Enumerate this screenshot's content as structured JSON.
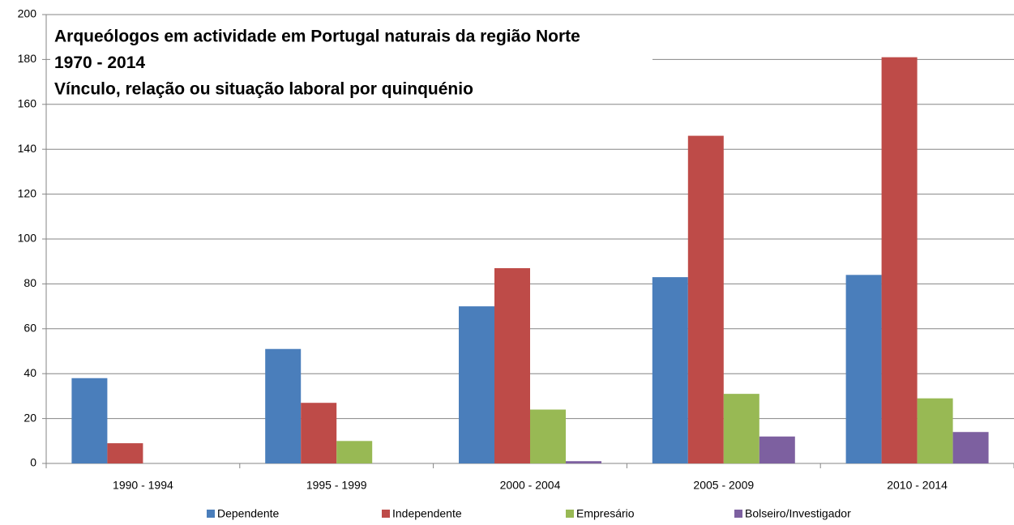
{
  "chart_data": {
    "type": "bar",
    "title": [
      "Arqueólogos em actividade em Portugal naturais da região Norte",
      "1970 - 2014",
      "Vínculo, relação ou situação laboral por quinquénio"
    ],
    "categories": [
      "1990 - 1994",
      "1995 - 1999",
      "2000 - 2004",
      "2005 - 2009",
      "2010 - 2014"
    ],
    "series": [
      {
        "name": "Dependente",
        "color": "#4a7ebb",
        "values": [
          38,
          51,
          70,
          83,
          84
        ]
      },
      {
        "name": "Independente",
        "color": "#be4b48",
        "values": [
          9,
          27,
          87,
          146,
          181
        ]
      },
      {
        "name": "Empresário",
        "color": "#98b954",
        "values": [
          0,
          10,
          24,
          31,
          29
        ]
      },
      {
        "name": "Bolseiro/Investigador",
        "color": "#7d60a0",
        "values": [
          0,
          0,
          1,
          12,
          14
        ]
      }
    ],
    "ylim": [
      0,
      200
    ],
    "yticks": [
      0,
      20,
      40,
      60,
      80,
      100,
      120,
      140,
      160,
      180,
      200
    ],
    "grid": true,
    "legend": "bottom"
  }
}
